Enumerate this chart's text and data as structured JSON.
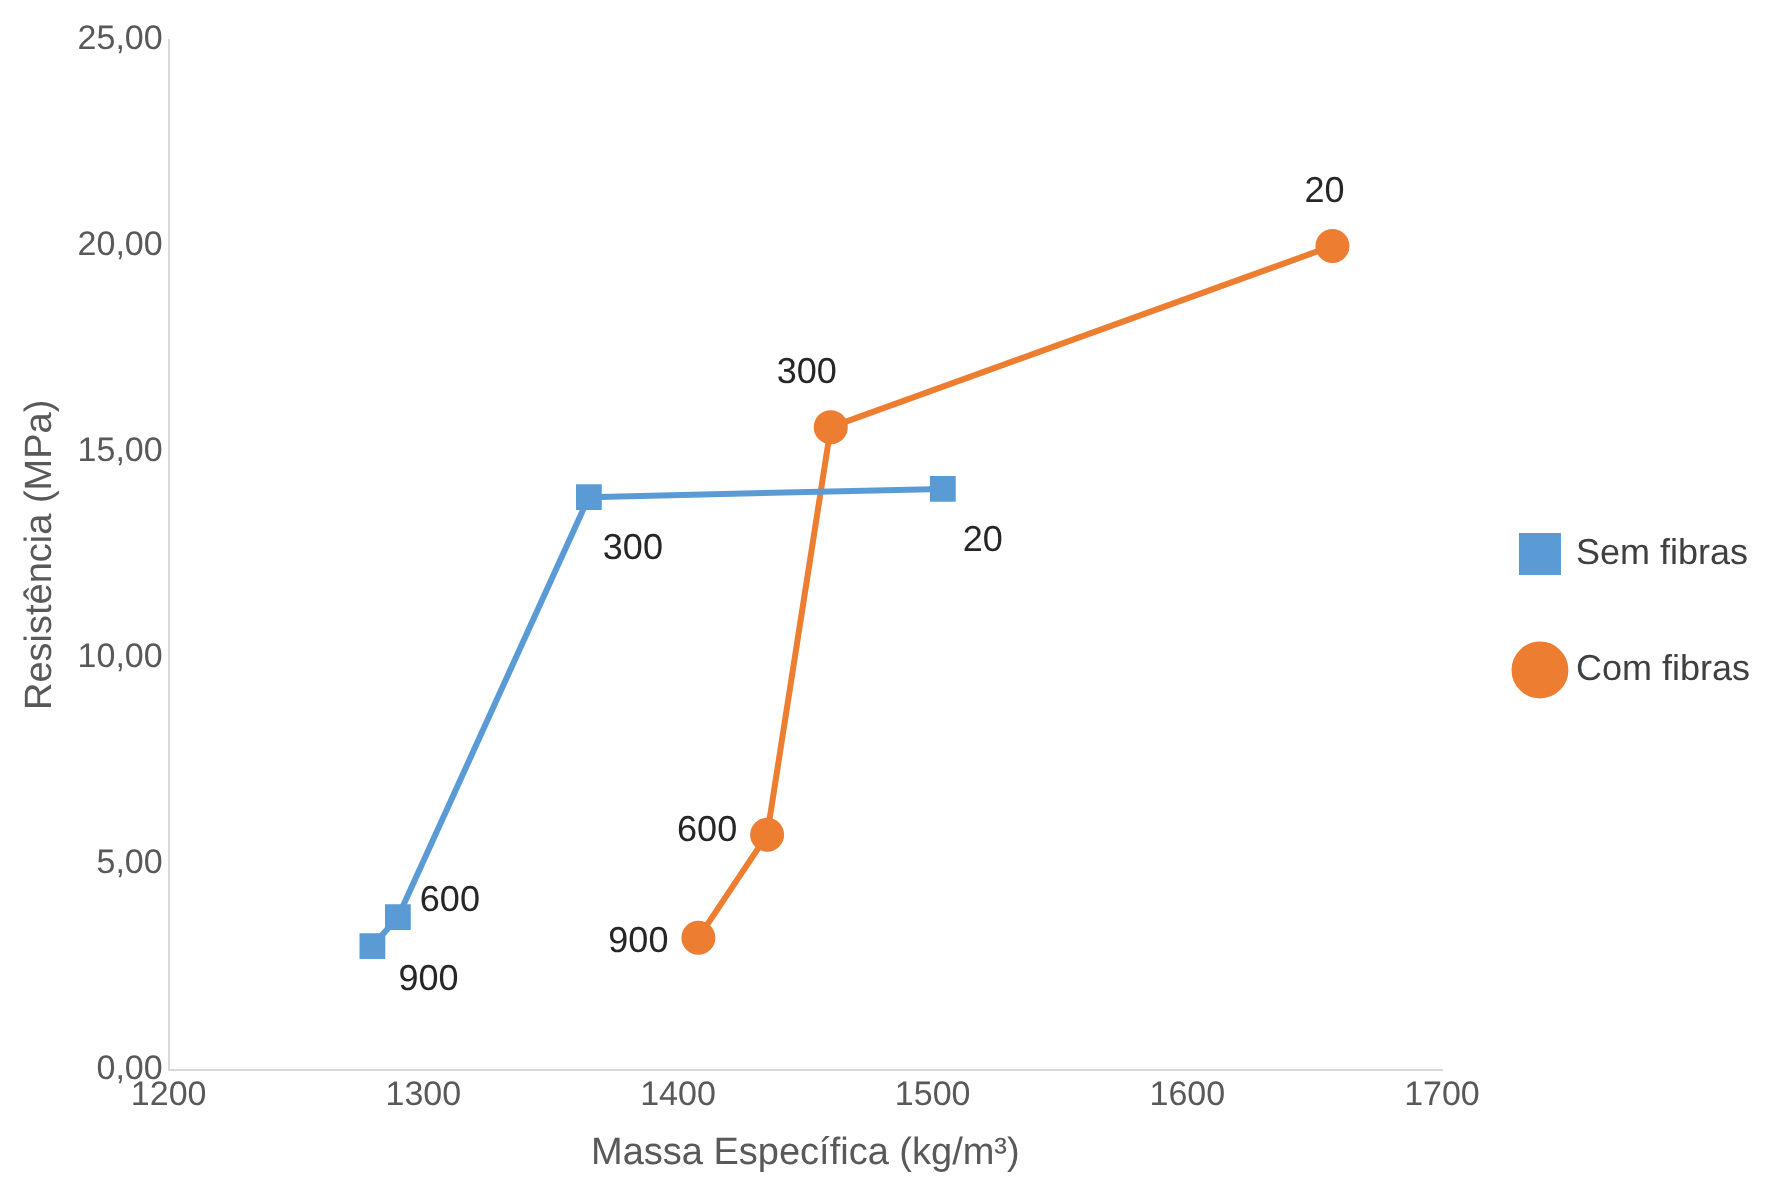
{
  "chart_data": {
    "type": "line",
    "xlabel": "Massa Específica (kg/m³)",
    "ylabel": "Resistência (MPa)",
    "xlim": [
      1200,
      1700
    ],
    "xticks": [
      1200,
      1300,
      1400,
      1500,
      1600,
      1700
    ],
    "ylim": [
      0,
      25
    ],
    "yticks": [
      {
        "value": 0,
        "label": "0,00"
      },
      {
        "value": 5,
        "label": "5,00"
      },
      {
        "value": 10,
        "label": "10,00"
      },
      {
        "value": 15,
        "label": "15,00"
      },
      {
        "value": 20,
        "label": "20,00"
      },
      {
        "value": 25,
        "label": "25,00"
      }
    ],
    "grid": false,
    "legend": "right",
    "series": [
      {
        "name": "Sem fibras",
        "color": "#5b9bd5",
        "marker": "square",
        "x": [
          1280,
          1290,
          1365,
          1504
        ],
        "values": [
          3.0,
          3.7,
          13.9,
          14.1
        ]
      },
      {
        "name": "Com fibras",
        "color": "#ed7d31",
        "marker": "circle",
        "x": [
          1408,
          1435,
          1460,
          1657
        ],
        "values": [
          3.2,
          5.7,
          15.6,
          20.0
        ]
      }
    ],
    "annotations": [
      {
        "text": "900",
        "x": 1280,
        "y": 3.0
      },
      {
        "text": "600",
        "x": 1290,
        "y": 3.7
      },
      {
        "text": "300",
        "x": 1365,
        "y": 13.9
      },
      {
        "text": "20",
        "x": 1504,
        "y": 14.1
      },
      {
        "text": "900",
        "x": 1408,
        "y": 3.2
      },
      {
        "text": "600",
        "x": 1435,
        "y": 5.7
      },
      {
        "text": "300",
        "x": 1460,
        "y": 15.6
      },
      {
        "text": "20",
        "x": 1657,
        "y": 20.0
      }
    ]
  }
}
